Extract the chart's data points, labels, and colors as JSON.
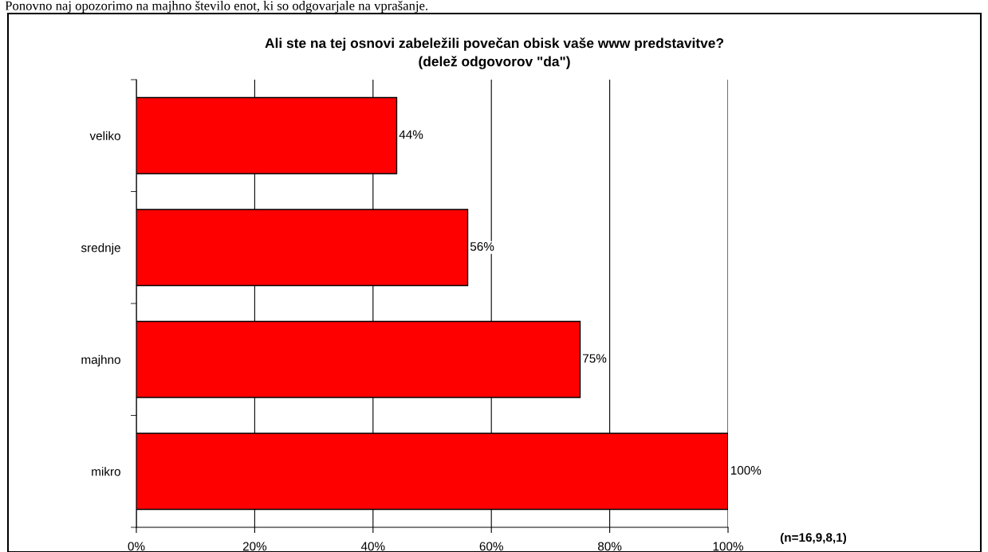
{
  "chart_data": {
    "type": "bar",
    "orientation": "horizontal",
    "title": "Ali ste na tej osnovi zabeležili povečan obisk vaše www predstavitve?\n(delež odgovorov \"da\")",
    "categories": [
      "veliko",
      "srednje",
      "majhno",
      "mikro"
    ],
    "values": [
      44,
      56,
      75,
      100
    ],
    "color": "#ff0000",
    "value_labels": [
      "44%",
      "56%",
      "75%",
      "100%"
    ],
    "xlim": [
      0,
      100
    ],
    "xticks": [
      {
        "value": 0,
        "label": "0%"
      },
      {
        "value": 20,
        "label": "20%"
      },
      {
        "value": 40,
        "label": "40%"
      },
      {
        "value": 60,
        "label": "60%"
      },
      {
        "value": 80,
        "label": "80%"
      },
      {
        "value": 100,
        "label": "100%"
      }
    ],
    "grid": "x",
    "annotations": [
      "Ponovno naj opozorimo na majhno število enot, ki so odgovarjale na vprašanje.",
      "(n=16,9,8,1)"
    ]
  }
}
